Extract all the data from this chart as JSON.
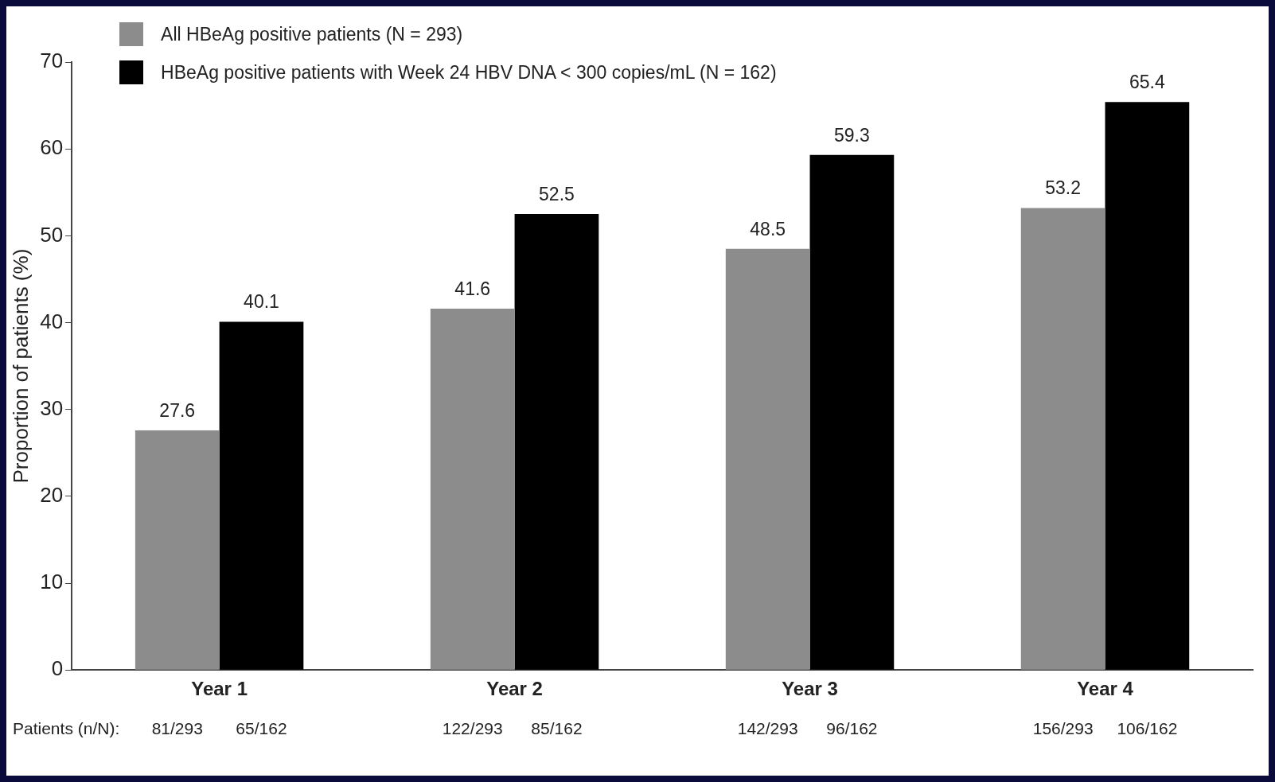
{
  "chart_data": {
    "type": "bar",
    "ylabel": "Proportion of patients (%)",
    "categories": [
      "Year 1",
      "Year 2",
      "Year 3",
      "Year 4"
    ],
    "series": [
      {
        "name": "All HBeAg positive patients (N = 293)",
        "color": "#8c8c8c",
        "values": [
          27.6,
          41.6,
          48.5,
          53.2
        ]
      },
      {
        "name": "HBeAg positive patients with Week 24 HBV DNA < 300 copies/mL (N = 162)",
        "color": "#000000",
        "values": [
          40.1,
          52.5,
          59.3,
          65.4
        ]
      }
    ],
    "ylim": [
      0,
      70
    ],
    "yticks": [
      0,
      10,
      20,
      30,
      40,
      50,
      60,
      70
    ],
    "data_labels": true,
    "grid": false,
    "legend": "top left",
    "annotations": [
      "Patients (n/N):",
      "81/293",
      "65/162",
      "122/293",
      "85/162",
      "142/293",
      "96/162",
      "156/293",
      "106/162"
    ]
  }
}
